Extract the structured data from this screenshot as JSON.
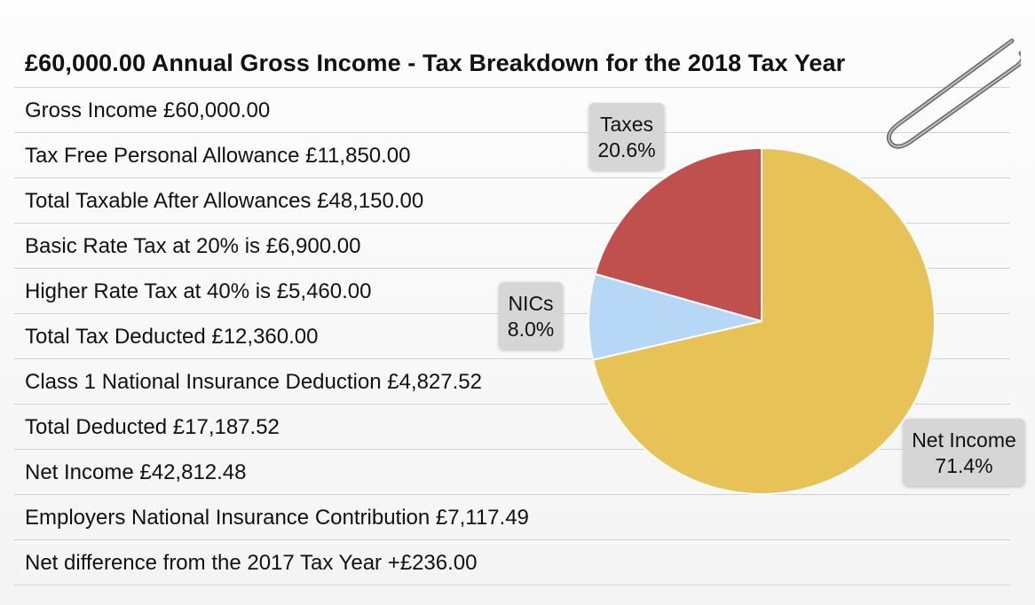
{
  "title": "£60,000.00 Annual Gross Income - Tax Breakdown for the 2018 Tax Year",
  "rows": [
    "Gross Income £60,000.00",
    "Tax Free Personal Allowance £11,850.00",
    "Total Taxable After Allowances £48,150.00",
    "Basic Rate Tax at 20% is £6,900.00",
    "Higher Rate Tax at 40% is £5,460.00",
    "Total Tax Deducted £12,360.00",
    "Class 1 National Insurance Deduction £4,827.52",
    "Total Deducted £17,187.52",
    "Net Income £42,812.48",
    "Employers National Insurance Contribution £7,117.49",
    "Net difference from the 2017 Tax Year +£236.00"
  ],
  "chart_data": {
    "type": "pie",
    "title": "",
    "slices": [
      {
        "label": "Net Income",
        "value": 71.4,
        "display": "71.4%",
        "color": "#E6C257"
      },
      {
        "label": "NICs",
        "value": 8.0,
        "display": "8.0%",
        "color": "#B6D7F5"
      },
      {
        "label": "Taxes",
        "value": 20.6,
        "display": "20.6%",
        "color": "#C0504D"
      }
    ]
  },
  "decorations": {
    "paperclip_icon": "paperclip-icon"
  }
}
